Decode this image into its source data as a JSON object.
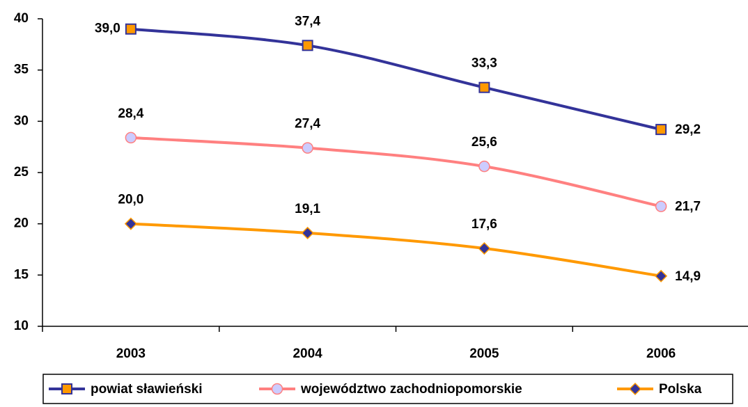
{
  "chart_data": {
    "type": "line",
    "categories": [
      "2003",
      "2004",
      "2005",
      "2006"
    ],
    "series": [
      {
        "name": "powiat sławieński",
        "color": "#333399",
        "marker": "square",
        "marker_color": "#ff9900",
        "values": [
          39.0,
          37.4,
          33.3,
          29.2
        ],
        "value_labels": [
          "39,0",
          "37,4",
          "33,3",
          "29,2"
        ]
      },
      {
        "name": "województwo zachodniopomorskie",
        "color": "#ff8080",
        "marker": "circle",
        "marker_color": "#ccccff",
        "values": [
          28.4,
          27.4,
          25.6,
          21.7
        ],
        "value_labels": [
          "28,4",
          "27,4",
          "25,6",
          "21,7"
        ]
      },
      {
        "name": "Polska",
        "color": "#ff9900",
        "marker": "diamond",
        "marker_color": "#333399",
        "values": [
          20.0,
          19.1,
          17.6,
          14.9
        ],
        "value_labels": [
          "20,0",
          "19,1",
          "17,6",
          "14,9"
        ]
      }
    ],
    "ylim": [
      10,
      40
    ],
    "yticks": [
      10,
      15,
      20,
      25,
      30,
      35,
      40
    ],
    "grid": false,
    "legend": "bottom"
  }
}
